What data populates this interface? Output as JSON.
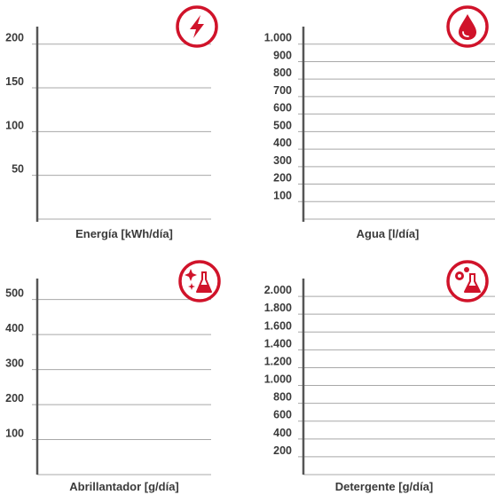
{
  "colors": {
    "accent": "#d0132a",
    "axis": "#555555",
    "grid": "#a8a8a8",
    "text": "#3a3a3a"
  },
  "chart_data": [
    {
      "type": "line",
      "xlabel": "Energía [kWh/día]",
      "ylabel": "",
      "ylim": [
        0,
        220
      ],
      "yticks": [
        {
          "v": 50,
          "t": "50"
        },
        {
          "v": 100,
          "t": "100"
        },
        {
          "v": 150,
          "t": "150"
        },
        {
          "v": 200,
          "t": "200"
        }
      ],
      "series": [],
      "grid": true,
      "icon": "lightning-bolt-icon"
    },
    {
      "type": "line",
      "xlabel": "Agua [l/día]",
      "ylabel": "",
      "ylim": [
        0,
        1100
      ],
      "yticks": [
        {
          "v": 100,
          "t": "100"
        },
        {
          "v": 200,
          "t": "200"
        },
        {
          "v": 300,
          "t": "300"
        },
        {
          "v": 400,
          "t": "400"
        },
        {
          "v": 500,
          "t": "500"
        },
        {
          "v": 600,
          "t": "600"
        },
        {
          "v": 700,
          "t": "700"
        },
        {
          "v": 800,
          "t": "800"
        },
        {
          "v": 900,
          "t": "900"
        },
        {
          "v": 1000,
          "t": "1.000"
        }
      ],
      "series": [],
      "grid": true,
      "icon": "water-drop-icon"
    },
    {
      "type": "line",
      "xlabel": "Abrillantador [g/día]",
      "ylabel": "",
      "ylim": [
        0,
        560
      ],
      "yticks": [
        {
          "v": 100,
          "t": "100"
        },
        {
          "v": 200,
          "t": "200"
        },
        {
          "v": 300,
          "t": "300"
        },
        {
          "v": 400,
          "t": "400"
        },
        {
          "v": 500,
          "t": "500"
        }
      ],
      "series": [],
      "grid": true,
      "icon": "sparkle-flask-icon"
    },
    {
      "type": "line",
      "xlabel": "Detergente [g/día]",
      "ylabel": "",
      "ylim": [
        0,
        2200
      ],
      "yticks": [
        {
          "v": 200,
          "t": "200"
        },
        {
          "v": 400,
          "t": "400"
        },
        {
          "v": 600,
          "t": "600"
        },
        {
          "v": 800,
          "t": "800"
        },
        {
          "v": 1000,
          "t": "1.000"
        },
        {
          "v": 1200,
          "t": "1.200"
        },
        {
          "v": 1400,
          "t": "1.400"
        },
        {
          "v": 1600,
          "t": "1.600"
        },
        {
          "v": 1800,
          "t": "1.800"
        },
        {
          "v": 2000,
          "t": "2.000"
        }
      ],
      "series": [],
      "grid": true,
      "icon": "detergent-flask-icon"
    }
  ]
}
